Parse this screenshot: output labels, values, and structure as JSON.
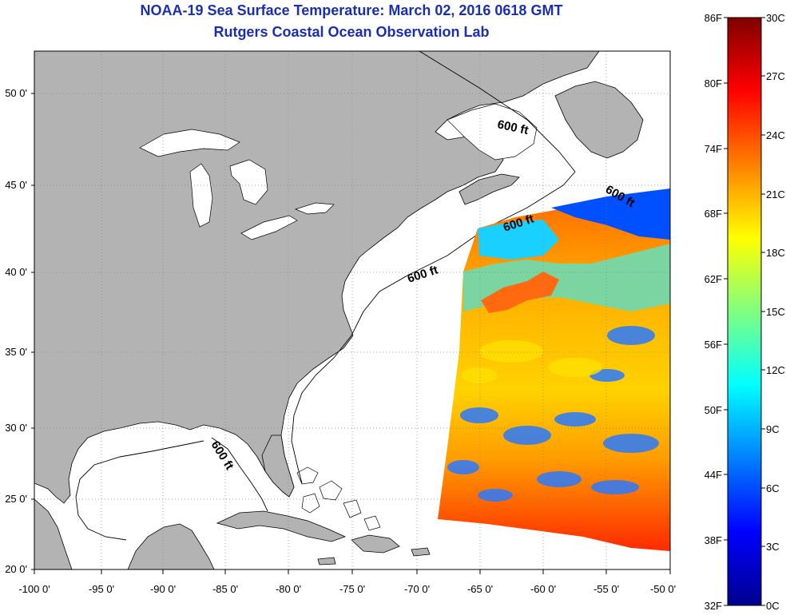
{
  "title": "NOAA-19 Sea Surface Temperature:  March 02, 2016 0618 GMT",
  "subtitle": "Rutgers Coastal Ocean Observation Lab",
  "lat_labels": [
    "50 0'",
    "45 0'",
    "40 0'",
    "35 0'",
    "30 0'",
    "25 0'",
    "20 0'"
  ],
  "lon_labels": [
    "-100 0'",
    "-95 0'",
    "-90 0'",
    "-85 0'",
    "-80 0'",
    "-75 0'",
    "-70 0'",
    "-65 0'",
    "-60 0'",
    "-55 0'",
    "-50 0'"
  ],
  "isobath_label": "600 ft",
  "colorbar": {
    "fahrenheit_labels": [
      "86F",
      "80F",
      "74F",
      "68F",
      "62F",
      "56F",
      "50F",
      "44F",
      "38F",
      "32F"
    ],
    "celsius_labels": [
      "30C",
      "27C",
      "24C",
      "21C",
      "18C",
      "15C",
      "12C",
      "9C",
      "6C",
      "3C",
      "0C"
    ],
    "colors": [
      "#00008f",
      "#0000ff",
      "#0080ff",
      "#00ffff",
      "#80ff80",
      "#ffff00",
      "#ff8000",
      "#ff0000",
      "#800000"
    ]
  },
  "colors": {
    "title": "#1a2fb0",
    "land": "#b3b3b3",
    "ocean": "#ffffff",
    "grid": "#808080"
  }
}
